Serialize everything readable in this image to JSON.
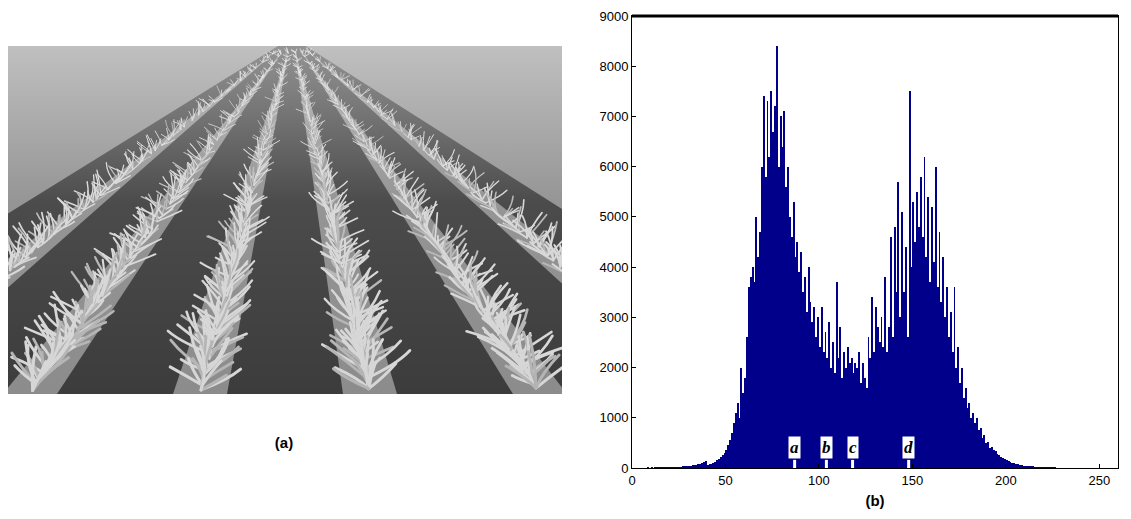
{
  "photo": {
    "label": "(a)"
  },
  "chart_data": {
    "type": "histogram",
    "xlabel": "(b)",
    "color": "#00008b",
    "bins": [
      0,
      1,
      2,
      3,
      4,
      5,
      6,
      7,
      8,
      9,
      10,
      11,
      12,
      13,
      14,
      15,
      16,
      17,
      18,
      19,
      20,
      21,
      22,
      23,
      24,
      25,
      26,
      27,
      28,
      29,
      30,
      31,
      32,
      33,
      34,
      35,
      36,
      37,
      38,
      39,
      40,
      41,
      42,
      43,
      44,
      45,
      46,
      47,
      48,
      49,
      50,
      51,
      52,
      53,
      54,
      55,
      56,
      57,
      58,
      59,
      60,
      61,
      62,
      63,
      64,
      65,
      66,
      67,
      68,
      69,
      70,
      71,
      72,
      73,
      74,
      75,
      76,
      77,
      78,
      79,
      80,
      81,
      82,
      83,
      84,
      85,
      86,
      87,
      88,
      89,
      90,
      91,
      92,
      93,
      94,
      95,
      96,
      97,
      98,
      99,
      100,
      101,
      102,
      103,
      104,
      105,
      106,
      107,
      108,
      109,
      110,
      111,
      112,
      113,
      114,
      115,
      116,
      117,
      118,
      119,
      120,
      121,
      122,
      123,
      124,
      125,
      126,
      127,
      128,
      129,
      130,
      131,
      132,
      133,
      134,
      135,
      136,
      137,
      138,
      139,
      140,
      141,
      142,
      143,
      144,
      145,
      146,
      147,
      148,
      149,
      150,
      151,
      152,
      153,
      154,
      155,
      156,
      157,
      158,
      159,
      160,
      161,
      162,
      163,
      164,
      165,
      166,
      167,
      168,
      169,
      170,
      171,
      172,
      173,
      174,
      175,
      176,
      177,
      178,
      179,
      180,
      181,
      182,
      183,
      184,
      185,
      186,
      187,
      188,
      189,
      190,
      191,
      192,
      193,
      194,
      195,
      196,
      197,
      198,
      199,
      200,
      201,
      202,
      203,
      204,
      205,
      206,
      207,
      208,
      209,
      210,
      211,
      212,
      213,
      214,
      215,
      216,
      217,
      218,
      219,
      220,
      221,
      222,
      223,
      224,
      225,
      226,
      227,
      228,
      229,
      230,
      231,
      232,
      233,
      234,
      235,
      236,
      237,
      238,
      239,
      240,
      241,
      242,
      243,
      244,
      245,
      246,
      247,
      248,
      249,
      250,
      251,
      252,
      253,
      254,
      255,
      256
    ],
    "counts": [
      0,
      0,
      0,
      0,
      0,
      8,
      10,
      10,
      12,
      10,
      12,
      10,
      14,
      12,
      15,
      14,
      16,
      15,
      18,
      16,
      20,
      18,
      22,
      20,
      25,
      24,
      28,
      30,
      32,
      35,
      40,
      45,
      50,
      55,
      60,
      70,
      80,
      90,
      110,
      130,
      60,
      70,
      80,
      100,
      120,
      150,
      180,
      220,
      260,
      300,
      350,
      450,
      550,
      700,
      900,
      1100,
      1300,
      1000,
      2000,
      1500,
      1800,
      2600,
      3600,
      3800,
      4000,
      3700,
      5000,
      4200,
      4700,
      6000,
      7400,
      5800,
      7300,
      6200,
      7500,
      6700,
      7200,
      8400,
      6000,
      7000,
      6400,
      7100,
      5600,
      6000,
      5000,
      4600,
      5300,
      4200,
      4500,
      3900,
      4300,
      3500,
      3800,
      3100,
      4000,
      3300,
      2900,
      3200,
      2600,
      3000,
      2400,
      3200,
      2300,
      2700,
      2200,
      2900,
      2000,
      2500,
      1900,
      3700,
      2200,
      2800,
      1800,
      2300,
      2000,
      2400,
      2100,
      2200,
      1900,
      2100,
      2000,
      2300,
      1700,
      2100,
      1800,
      1600,
      2600,
      2200,
      3400,
      2300,
      3200,
      2800,
      2500,
      3000,
      2400,
      3800,
      2300,
      2800,
      4600,
      2600,
      4800,
      3500,
      5700,
      3000,
      5100,
      3500,
      4400,
      2600,
      7500,
      4000,
      5300,
      4500,
      5500,
      4800,
      5800,
      4600,
      6200,
      4200,
      5400,
      3700,
      5200,
      4100,
      6000,
      3600,
      4700,
      3300,
      4200,
      3000,
      3600,
      2600,
      3100,
      2300,
      3600,
      2000,
      2400,
      1700,
      2000,
      1400,
      1600,
      1200,
      1300,
      1000,
      1100,
      900,
      1000,
      750,
      800,
      600,
      650,
      500,
      520,
      400,
      420,
      350,
      330,
      280,
      250,
      220,
      200,
      180,
      160,
      140,
      120,
      100,
      90,
      80,
      70,
      60,
      50,
      45,
      40,
      38,
      35,
      32,
      30,
      28,
      26,
      24,
      22,
      20,
      18,
      16,
      15,
      14,
      13,
      12,
      11,
      10,
      10,
      9,
      9,
      8,
      8,
      7,
      7,
      6,
      6,
      5,
      5,
      5,
      4,
      4,
      4,
      3,
      3,
      3,
      3,
      2,
      2,
      2,
      2,
      2,
      1,
      1,
      0,
      0
    ],
    "xlim": [
      0,
      260
    ],
    "ylim": [
      0,
      9000
    ],
    "xticks": [
      0,
      50,
      100,
      150,
      200,
      250
    ],
    "yticks": [
      0,
      1000,
      2000,
      3000,
      4000,
      5000,
      6000,
      7000,
      8000,
      9000
    ],
    "grid": false,
    "annotations": [
      {
        "text": "a",
        "x": 87
      },
      {
        "text": "b",
        "x": 104
      },
      {
        "text": "c",
        "x": 118
      },
      {
        "text": "d",
        "x": 148
      }
    ]
  }
}
